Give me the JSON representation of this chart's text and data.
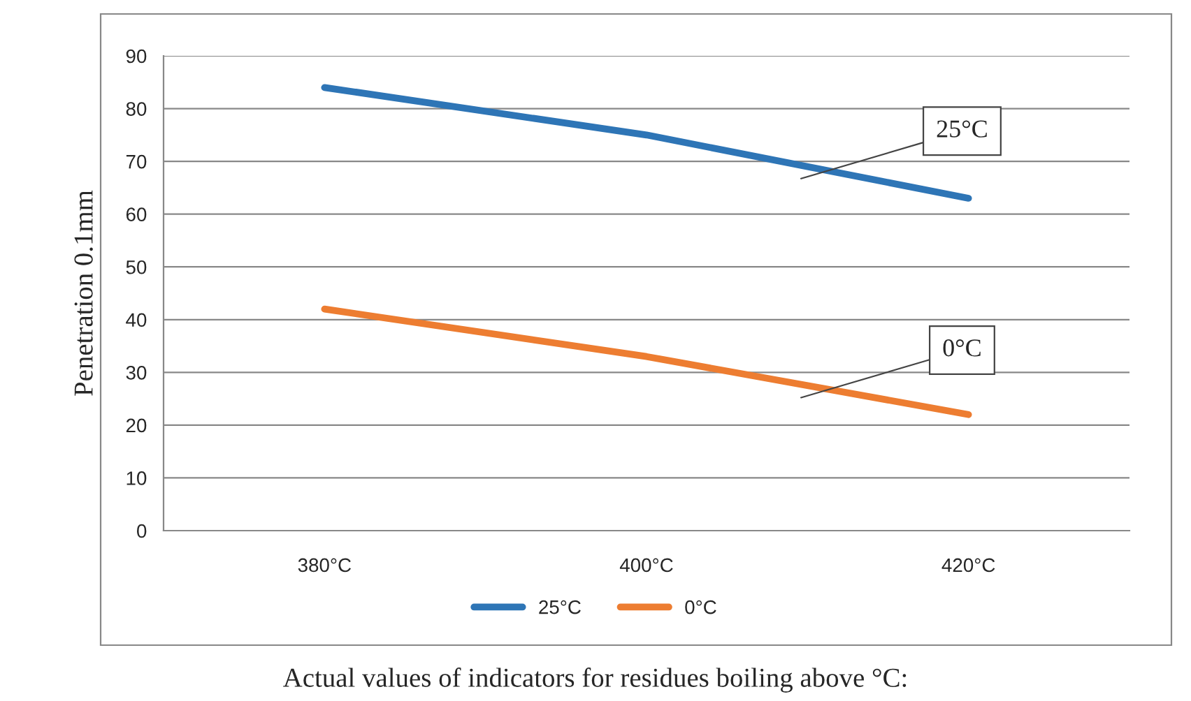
{
  "chart_data": {
    "type": "line",
    "xlabel": "Actual values of indicators for residues boiling above °C:",
    "ylabel": "Penetration 0.1mm",
    "categories": [
      "380°C",
      "400°C",
      "420°C"
    ],
    "series": [
      {
        "name": "25°C",
        "color": "#2e75b6",
        "values": [
          84,
          75,
          63
        ]
      },
      {
        "name": "0°C",
        "color": "#ed7d31",
        "values": [
          42,
          33,
          22
        ]
      }
    ],
    "annotations": [
      "25°C",
      "0°C"
    ],
    "ylim": [
      0,
      90
    ],
    "yticks": [
      0,
      10,
      20,
      30,
      40,
      50,
      60,
      70,
      80,
      90
    ],
    "grid": "y",
    "legend": "bottom",
    "marker": "none",
    "line_style": "solid"
  }
}
